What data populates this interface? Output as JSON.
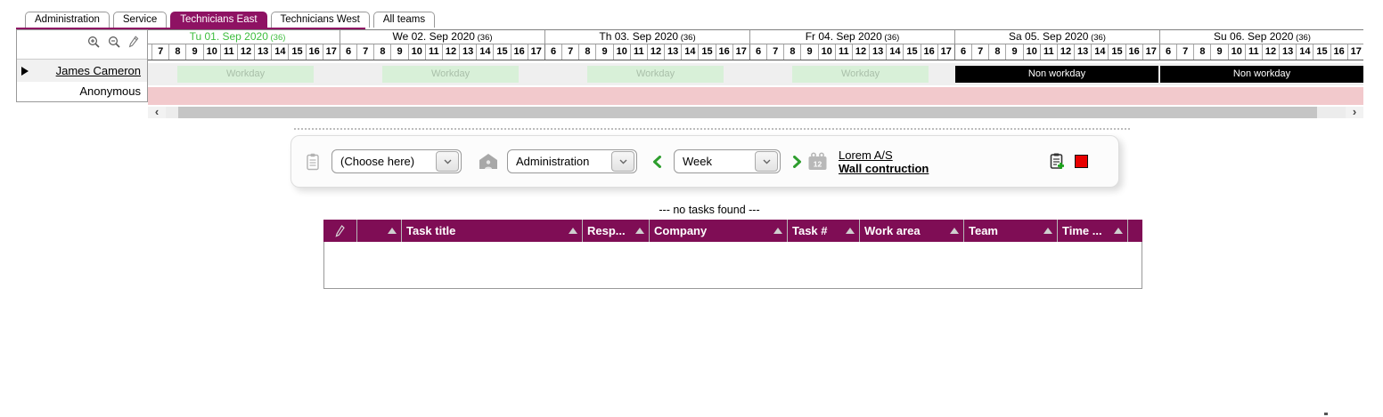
{
  "header": {
    "tabs": [
      {
        "label": "Administration",
        "active": false
      },
      {
        "label": "Service",
        "active": false
      },
      {
        "label": "Technicians East",
        "active": true
      },
      {
        "label": "Technicians West",
        "active": false
      },
      {
        "label": "All teams",
        "active": false
      }
    ]
  },
  "scheduler": {
    "days": [
      {
        "label": "Tu 01. Sep 2020",
        "week": "(36)",
        "current": true,
        "type": "workday"
      },
      {
        "label": "We 02. Sep 2020",
        "week": "(36)",
        "current": false,
        "type": "workday"
      },
      {
        "label": "Th 03. Sep 2020",
        "week": "(36)",
        "current": false,
        "type": "workday"
      },
      {
        "label": "Fr 04. Sep 2020",
        "week": "(36)",
        "current": false,
        "type": "workday"
      },
      {
        "label": "Sa 05. Sep 2020",
        "week": "(36)",
        "current": false,
        "type": "nonworkday"
      },
      {
        "label": "Su 06. Sep 2020",
        "week": "(36)",
        "current": false,
        "type": "nonworkday"
      }
    ],
    "hours": [
      "6",
      "7",
      "8",
      "9",
      "10",
      "11",
      "12",
      "13",
      "14",
      "15",
      "16",
      "17"
    ],
    "workday_label": "Workday",
    "non_workday_label": "Non workday",
    "resources": [
      {
        "name": "James Cameron"
      },
      {
        "name": "Anonymous"
      }
    ]
  },
  "toolbar": {
    "task_select_value": "(Choose here)",
    "team_select_value": "Administration",
    "period_select_value": "Week",
    "customer_link": "Lorem A/S",
    "project_link": "Wall contruction"
  },
  "tasks": {
    "empty_message": "--- no tasks found ---",
    "columns": [
      "Task title",
      "Resp...",
      "Company",
      "Task #",
      "Work area",
      "Team",
      "Time ..."
    ]
  },
  "colors": {
    "accent_purple": "#8E1263",
    "header_purple": "#7F0D55",
    "workday_green": "#D8F0D8",
    "workday_text": "#A9BFA9",
    "nonworkday_black": "#000000",
    "anonymous_pink": "#F2C9CC",
    "current_day_green": "#3EBD3E",
    "action_green": "#2E9E2E",
    "alert_red": "#E80000"
  }
}
